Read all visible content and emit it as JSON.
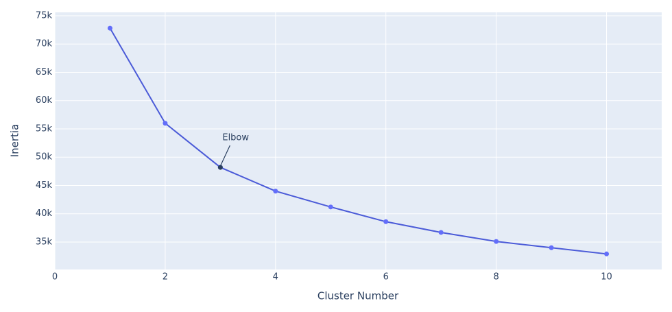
{
  "chart_data": {
    "type": "line",
    "x_label": "Cluster Number",
    "y_label": "Inertia",
    "x": [
      1,
      2,
      3,
      4,
      5,
      6,
      7,
      8,
      9,
      10
    ],
    "series": [
      {
        "color": "#4b5bd8",
        "marker_color": "#636efa",
        "values": [
          72800,
          56000,
          48200,
          44000,
          41200,
          38600,
          36700,
          35100,
          34000,
          32900
        ]
      }
    ],
    "xlim": [
      0,
      11
    ],
    "xticks": [
      0,
      2,
      4,
      6,
      8,
      10
    ],
    "ylim": [
      30150,
      75600
    ],
    "yticks": [
      {
        "value": 35000,
        "label": "35k"
      },
      {
        "value": 40000,
        "label": "40k"
      },
      {
        "value": 45000,
        "label": "45k"
      },
      {
        "value": 50000,
        "label": "50k"
      },
      {
        "value": 55000,
        "label": "55k"
      },
      {
        "value": 60000,
        "label": "60k"
      },
      {
        "value": 65000,
        "label": "65k"
      },
      {
        "value": 70000,
        "label": "70k"
      },
      {
        "value": 75000,
        "label": "75k"
      }
    ],
    "grid": true,
    "plot_bg": "#e5ecf6",
    "annotations": [
      {
        "text": "Elbow",
        "x": 3,
        "y": 48200,
        "color": "#2a3f5f"
      }
    ]
  }
}
